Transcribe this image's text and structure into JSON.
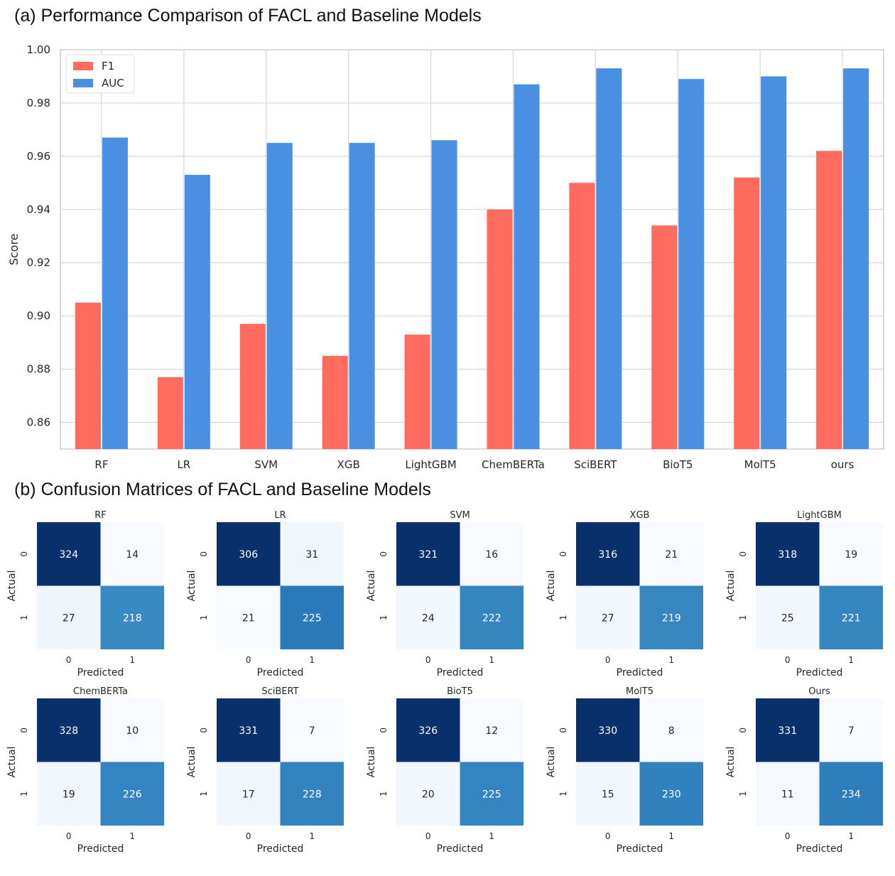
{
  "panel_a": {
    "title": "(a) Performance Comparison of FACL and Baseline Models"
  },
  "panel_b": {
    "title": "(b) Confusion Matrices of FACL and Baseline Models"
  },
  "chart_data": [
    {
      "type": "bar",
      "categories": [
        "RF",
        "LR",
        "SVM",
        "XGB",
        "LightGBM",
        "ChemBERTa",
        "SciBERT",
        "BioT5",
        "MolT5",
        "ours"
      ],
      "series": [
        {
          "name": "F1",
          "color": "#ff6b5e",
          "values": [
            0.905,
            0.877,
            0.897,
            0.885,
            0.893,
            0.94,
            0.95,
            0.934,
            0.952,
            0.962
          ]
        },
        {
          "name": "AUC",
          "color": "#4a90e2",
          "values": [
            0.967,
            0.953,
            0.965,
            0.965,
            0.966,
            0.987,
            0.993,
            0.989,
            0.99,
            0.993
          ]
        }
      ],
      "ylabel": "Score",
      "ylim": [
        0.85,
        1.0
      ],
      "yticks": [
        "0.86",
        "0.88",
        "0.90",
        "0.92",
        "0.94",
        "0.96",
        "0.98",
        "1.00"
      ],
      "grid": true,
      "legend_position": "top-left"
    },
    {
      "type": "heatmap",
      "colormap": "Blues",
      "xlabel": "Predicted",
      "ylabel": "Actual",
      "x_ticks": [
        "0",
        "1"
      ],
      "y_ticks": [
        "0",
        "1"
      ],
      "matrices": [
        {
          "title": "RF",
          "values": [
            [
              324,
              14
            ],
            [
              27,
              218
            ]
          ]
        },
        {
          "title": "LR",
          "values": [
            [
              306,
              31
            ],
            [
              21,
              225
            ]
          ]
        },
        {
          "title": "SVM",
          "values": [
            [
              321,
              16
            ],
            [
              24,
              222
            ]
          ]
        },
        {
          "title": "XGB",
          "values": [
            [
              316,
              21
            ],
            [
              27,
              219
            ]
          ]
        },
        {
          "title": "LightGBM",
          "values": [
            [
              318,
              19
            ],
            [
              25,
              221
            ]
          ]
        },
        {
          "title": "ChemBERTa",
          "values": [
            [
              328,
              10
            ],
            [
              19,
              226
            ]
          ]
        },
        {
          "title": "SciBERT",
          "values": [
            [
              331,
              7
            ],
            [
              17,
              228
            ]
          ]
        },
        {
          "title": "BioT5",
          "values": [
            [
              326,
              12
            ],
            [
              20,
              225
            ]
          ]
        },
        {
          "title": "MolT5",
          "values": [
            [
              330,
              8
            ],
            [
              15,
              230
            ]
          ]
        },
        {
          "title": "Ours",
          "values": [
            [
              331,
              7
            ],
            [
              11,
              234
            ]
          ]
        }
      ]
    }
  ]
}
